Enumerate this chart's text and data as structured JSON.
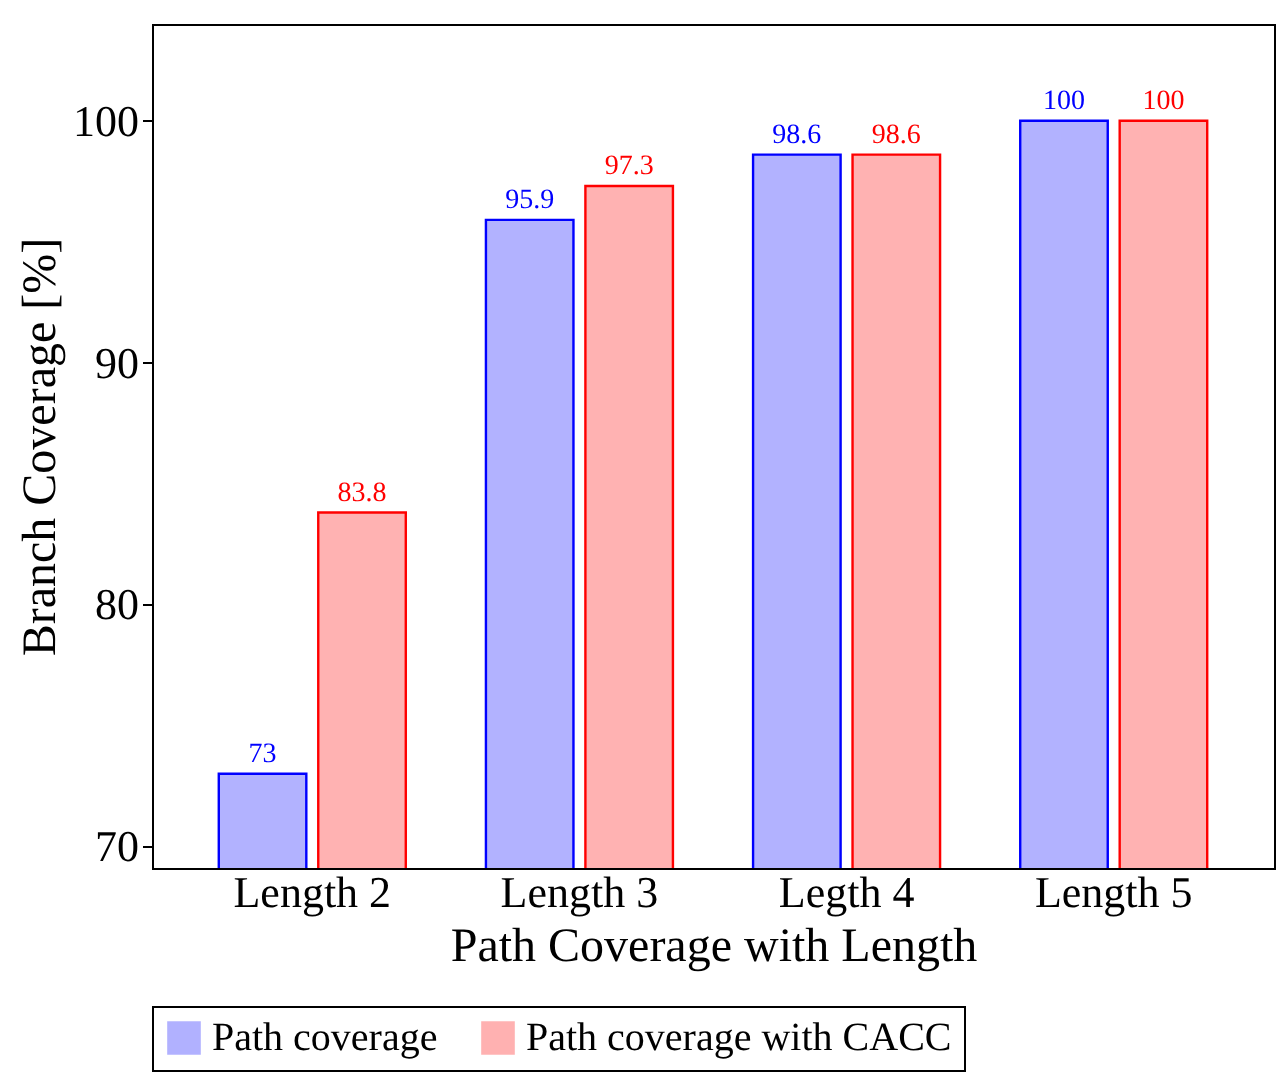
{
  "chart_data": {
    "type": "bar",
    "xlabel": "Path Coverage with Length",
    "ylabel": "Branch Coverage [%]",
    "categories": [
      "Length 2",
      "Length 3",
      "Legth 4",
      "Length 5"
    ],
    "series": [
      {
        "name": "Path coverage",
        "color": "#0000ff",
        "values": [
          73,
          95.9,
          98.6,
          100
        ]
      },
      {
        "name": "Path coverage with CACC",
        "color": "#ff0000",
        "values": [
          83.8,
          97.3,
          98.6,
          100
        ]
      }
    ],
    "ylim": [
      69.1,
      104
    ],
    "yticks": [
      70,
      80,
      90,
      100
    ],
    "data_labels": true,
    "grid": false,
    "legend": "bottom"
  }
}
